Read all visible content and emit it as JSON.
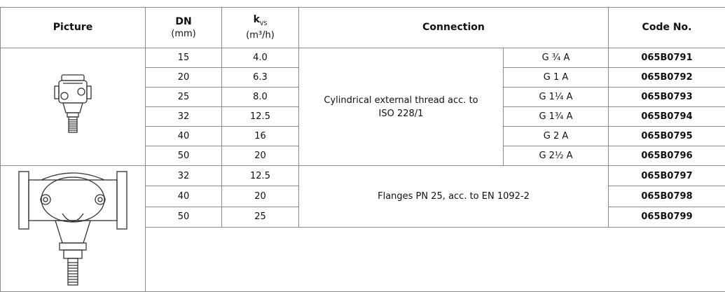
{
  "table": {
    "headers": {
      "picture": "Picture",
      "dn": "DN",
      "dn_unit": "(mm)",
      "kvs": "k",
      "kvs_sub": "VS",
      "kvs_unit": "(m³/h)",
      "connection": "Connection",
      "code": "Code No."
    },
    "groups": [
      {
        "connection": "Cylindrical external thread acc. to ISO 228/1",
        "rows": [
          {
            "dn": "15",
            "kvs": "4.0",
            "thread": "G ¾ A",
            "code": "065B0791"
          },
          {
            "dn": "20",
            "kvs": "6.3",
            "thread": "G 1 A",
            "code": "065B0792"
          },
          {
            "dn": "25",
            "kvs": "8.0",
            "thread": "G 1¼ A",
            "code": "065B0793"
          },
          {
            "dn": "32",
            "kvs": "12.5",
            "thread": "G 1¾ A",
            "code": "065B0794"
          },
          {
            "dn": "40",
            "kvs": "16",
            "thread": "G 2 A",
            "code": "065B0795"
          },
          {
            "dn": "50",
            "kvs": "20",
            "thread": "G 2½ A",
            "code": "065B0796"
          }
        ]
      },
      {
        "connection": "Flanges PN 25, acc. to EN 1092-2",
        "rows": [
          {
            "dn": "32",
            "kvs": "12.5",
            "code": "065B0797"
          },
          {
            "dn": "40",
            "kvs": "20",
            "code": "065B0798"
          },
          {
            "dn": "50",
            "kvs": "25",
            "code": "065B0799"
          }
        ]
      }
    ]
  }
}
